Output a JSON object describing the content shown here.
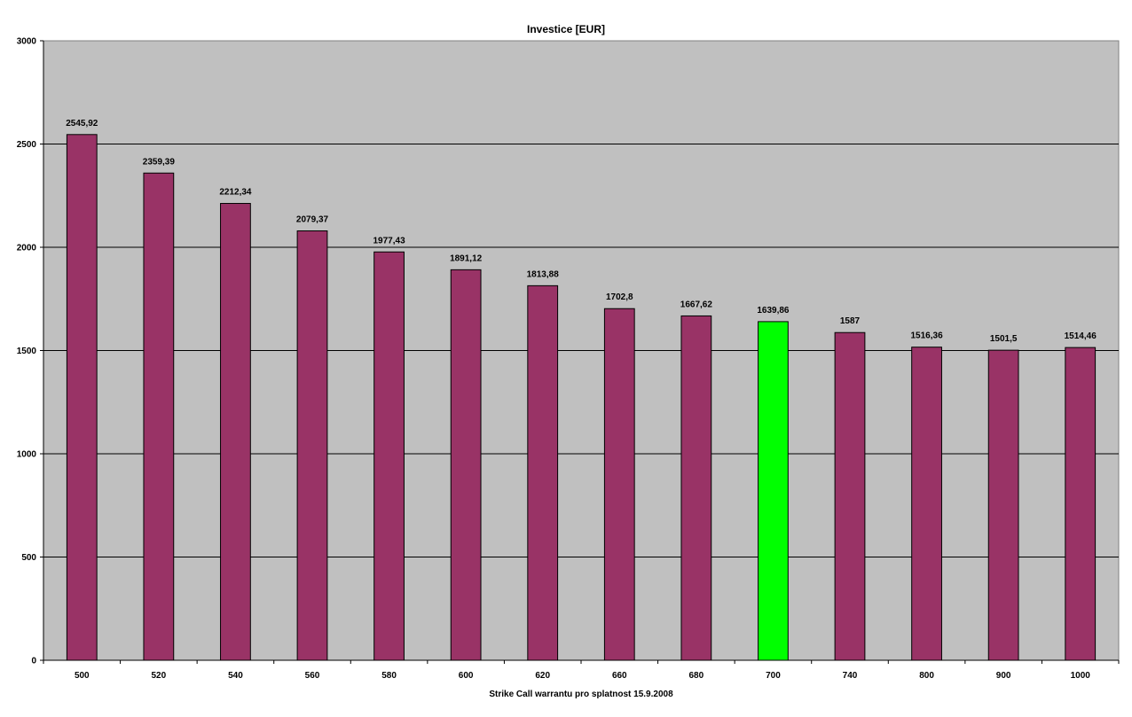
{
  "chart_data": {
    "type": "bar",
    "title": "Investice [EUR]",
    "xlabel": "Strike Call warrantu pro splatnost 15.9.2008",
    "ylabel": "",
    "ylim": [
      0,
      3000
    ],
    "yticks": [
      0,
      500,
      1000,
      1500,
      2000,
      2500,
      3000
    ],
    "grid": true,
    "legend": "none",
    "categories": [
      "500",
      "520",
      "540",
      "560",
      "580",
      "600",
      "620",
      "660",
      "680",
      "700",
      "740",
      "800",
      "900",
      "1000"
    ],
    "values": [
      2545.92,
      2359.39,
      2212.34,
      2079.37,
      1977.43,
      1891.12,
      1813.88,
      1702.8,
      1667.62,
      1639.86,
      1587,
      1516.36,
      1501.5,
      1514.46
    ],
    "value_labels": [
      "2545,92",
      "2359,39",
      "2212,34",
      "2079,37",
      "1977,43",
      "1891,12",
      "1813,88",
      "1702,8",
      "1667,62",
      "1639,86",
      "1587",
      "1516,36",
      "1501,5",
      "1514,46"
    ],
    "highlight_index": 9,
    "colors": {
      "bar": "#993366",
      "highlight": "#00ff00",
      "plot_background": "#c0c0c0",
      "gridline": "#000000"
    }
  }
}
